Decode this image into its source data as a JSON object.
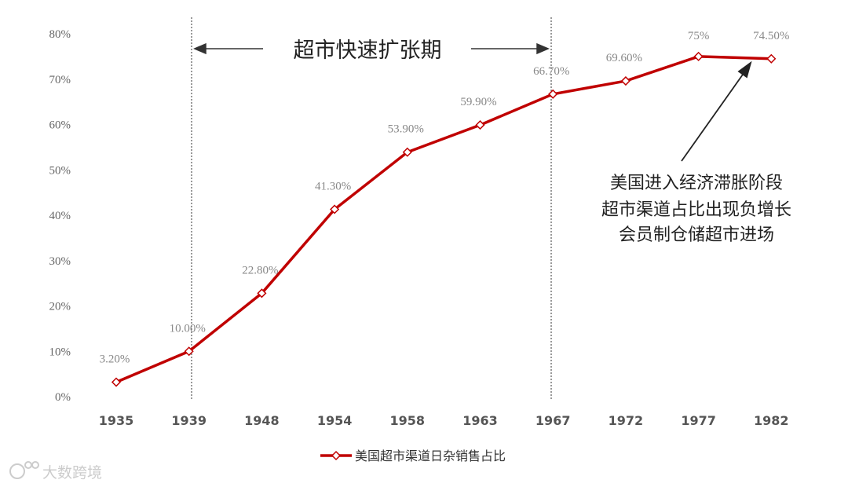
{
  "chart_data": {
    "type": "line",
    "categories": [
      "1935",
      "1939",
      "1948",
      "1954",
      "1958",
      "1963",
      "1967",
      "1972",
      "1977",
      "1982"
    ],
    "series": [
      {
        "name": "美国超市渠道日杂销售占比",
        "values": [
          3.2,
          10.0,
          22.8,
          41.3,
          53.9,
          59.9,
          66.7,
          69.6,
          75,
          74.5
        ],
        "color": "#c00000"
      }
    ],
    "data_labels": [
      "3.20%",
      "10.00%",
      "22.80%",
      "41.30%",
      "53.90%",
      "59.90%",
      "66.70%",
      "69.60%",
      "75%",
      "74.50%"
    ],
    "yticks": [
      "0%",
      "10%",
      "20%",
      "30%",
      "40%",
      "50%",
      "60%",
      "70%",
      "80%"
    ],
    "ylim": [
      0,
      80
    ],
    "grid": false,
    "legend_position": "bottom",
    "annotations": {
      "period_label": "超市快速扩张期",
      "period_range": [
        "1939",
        "1967"
      ],
      "note_lines": [
        "美国进入经济滞胀阶段",
        "超市渠道占比出现负增长",
        "会员制仓储超市进场"
      ]
    }
  },
  "watermark": "大数跨境"
}
